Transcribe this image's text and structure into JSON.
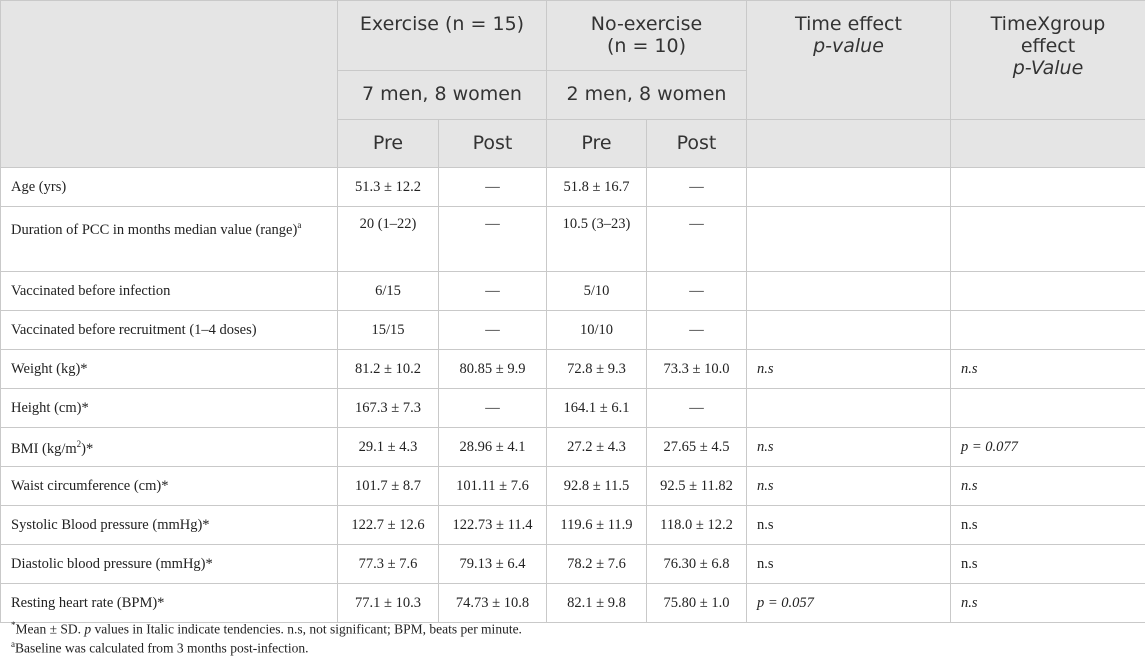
{
  "header": {
    "exercise": "Exercise (n = 15)",
    "noexercise_l1": "No-exercise",
    "noexercise_l2": "(n = 10)",
    "time_l1": "Time effect",
    "time_l2": "p-value",
    "txg_l1": "TimeXgroup",
    "txg_l2": "effect",
    "txg_l3": "p-Value",
    "exercise_sub": "7 men, 8 women",
    "noexercise_sub": "2 men, 8 women",
    "pre": "Pre",
    "post": "Post"
  },
  "rows": [
    {
      "label": "Age (yrs)",
      "sup": "",
      "ex_pre": "51.3 ± 12.2",
      "ex_post": "—",
      "no_pre": "51.8 ± 16.7",
      "no_post": "—",
      "time": "",
      "txg": ""
    },
    {
      "label": "Duration of PCC in months median value (range)",
      "sup": "a",
      "ex_pre": "20 (1–22)",
      "ex_post": "—",
      "no_pre": "10.5 (3–23)",
      "no_post": "—",
      "time": "",
      "txg": ""
    },
    {
      "label": "Vaccinated before infection",
      "sup": "",
      "ex_pre": "6/15",
      "ex_post": "—",
      "no_pre": "5/10",
      "no_post": "—",
      "time": "",
      "txg": ""
    },
    {
      "label": "Vaccinated before recruitment (1–4 doses)",
      "sup": "",
      "ex_pre": "15/15",
      "ex_post": "—",
      "no_pre": "10/10",
      "no_post": "—",
      "time": "",
      "txg": ""
    },
    {
      "label": "Weight (kg)*",
      "sup": "",
      "ex_pre": "81.2 ± 10.2",
      "ex_post": "80.85 ± 9.9",
      "no_pre": "72.8 ± 9.3",
      "no_post": "73.3 ± 10.0",
      "time": "n.s",
      "txg": "n.s"
    },
    {
      "label": "Height (cm)*",
      "sup": "",
      "ex_pre": "167.3 ± 7.3",
      "ex_post": "—",
      "no_pre": "164.1 ± 6.1",
      "no_post": "—",
      "time": "",
      "txg": ""
    },
    {
      "label_pre": "BMI (kg/m",
      "label_sup": "2",
      "label_post": ")*",
      "ex_pre": "29.1 ± 4.3",
      "ex_post": "28.96 ± 4.1",
      "no_pre": "27.2 ± 4.3",
      "no_post": "27.65 ± 4.5",
      "time": "n.s",
      "txg": "p = 0.077"
    },
    {
      "label": "Waist circumference (cm)*",
      "sup": "",
      "ex_pre": "101.7 ± 8.7",
      "ex_post": "101.11 ± 7.6",
      "no_pre": "92.8 ± 11.5",
      "no_post": "92.5 ± 11.82",
      "time": "n.s",
      "txg": "n.s"
    },
    {
      "label": "Systolic Blood pressure (mmHg)*",
      "sup": "",
      "ex_pre": "122.7 ± 12.6",
      "ex_post": "122.73 ± 11.4",
      "no_pre": "119.6 ± 11.9",
      "no_post": "118.0 ± 12.2",
      "time": "n.s",
      "txg": "n.s"
    },
    {
      "label": "Diastolic blood pressure (mmHg)*",
      "sup": "",
      "ex_pre": "77.3 ± 7.6",
      "ex_post": "79.13 ± 6.4",
      "no_pre": "78.2 ± 7.6",
      "no_post": "76.30 ± 6.8",
      "time": "n.s",
      "txg": "n.s"
    },
    {
      "label": "Resting heart rate (BPM)*",
      "sup": "",
      "ex_pre": "77.1 ± 10.3",
      "ex_post": "74.73 ± 10.8",
      "no_pre": "82.1 ± 9.8",
      "no_post": "75.80 ± 1.0",
      "time": "p = 0.057",
      "txg": "n.s"
    }
  ],
  "footnotes": {
    "fn1_mark": "*",
    "fn1_a": "Mean ± SD. ",
    "fn1_p": "p",
    "fn1_b": " values in Italic indicate tendencies. n.s, not significant; BPM, beats per minute.",
    "fn2_mark": "a",
    "fn2_text": "Baseline was calculated from 3 months post-infection."
  }
}
